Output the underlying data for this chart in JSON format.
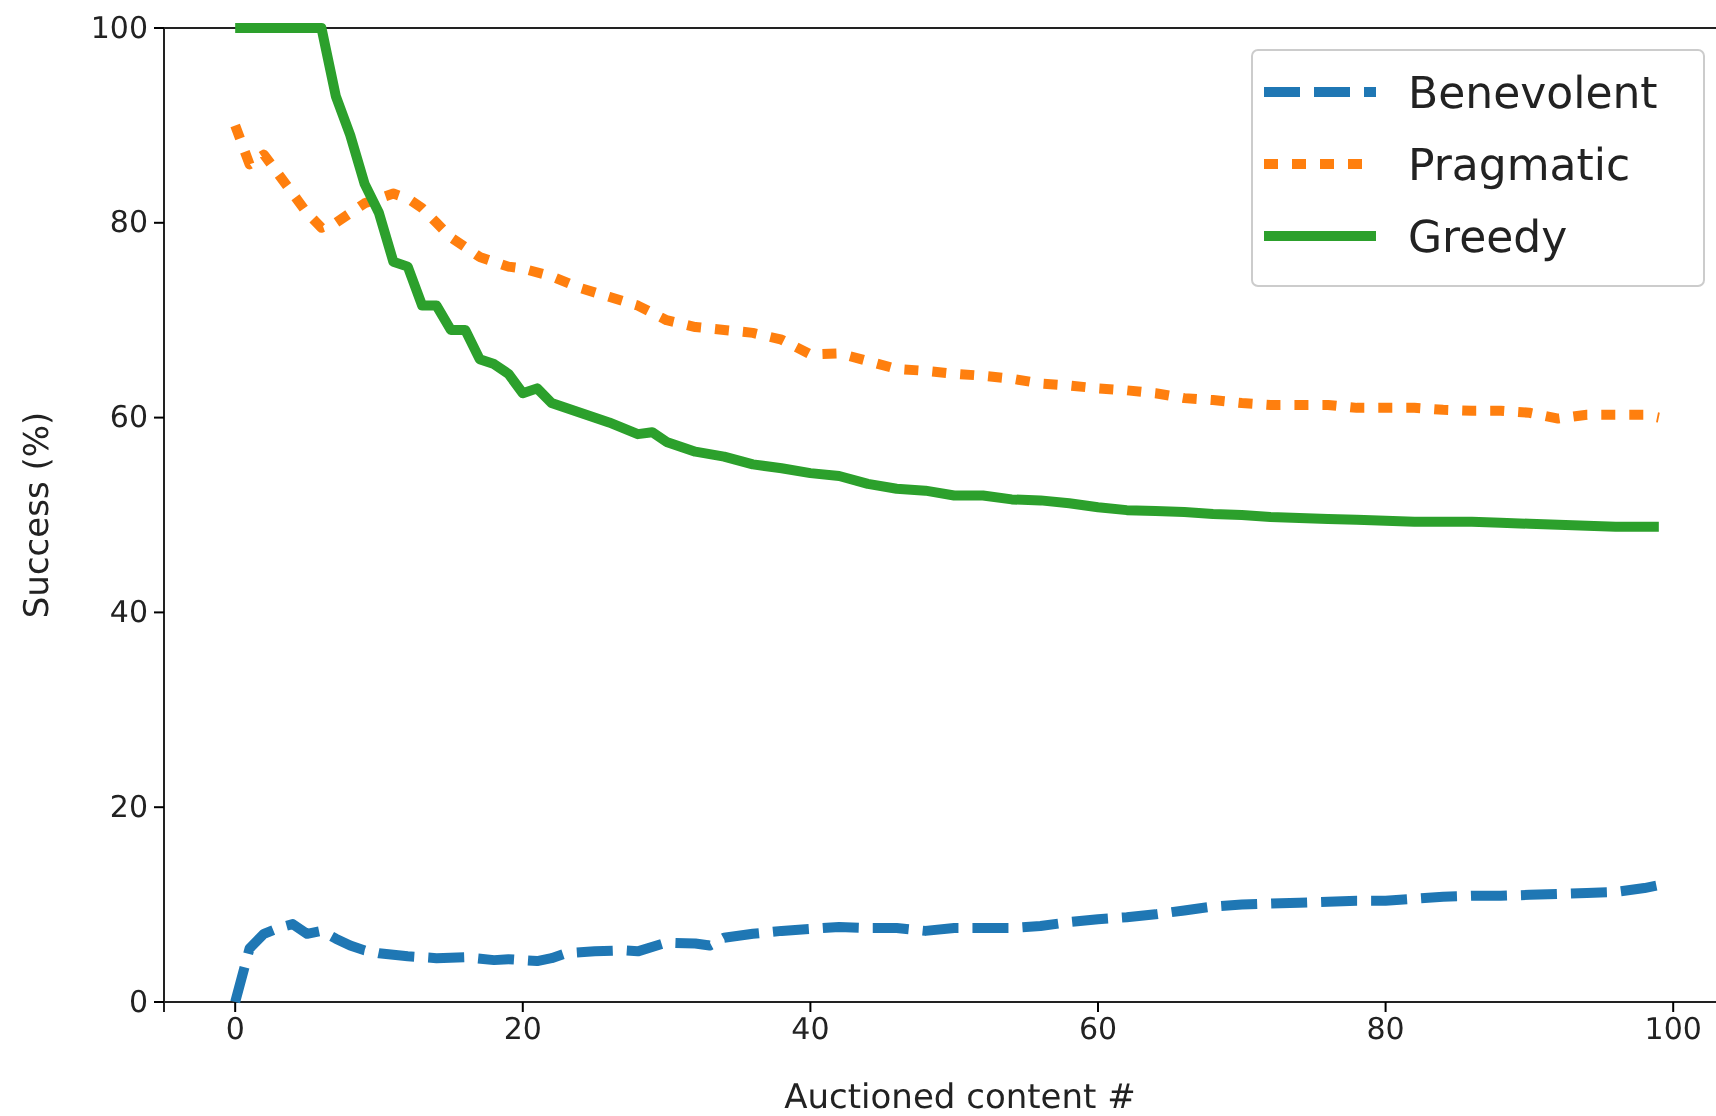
{
  "chart_data": {
    "type": "line",
    "xlabel": "Auctioned content #",
    "ylabel": "Success (%)",
    "xlim": [
      -4.95,
      103.95
    ],
    "ylim": [
      0,
      100
    ],
    "xticks": [
      0,
      20,
      40,
      60,
      80,
      100
    ],
    "yticks": [
      0,
      20,
      40,
      60,
      80,
      100
    ],
    "grid": false,
    "legend": "top right",
    "series": [
      {
        "name": "Benevolent",
        "color": "#1f77b4",
        "line_style": "dashed",
        "x": [
          0,
          1,
          2,
          3,
          4,
          5,
          6,
          7,
          8,
          9,
          10,
          12,
          14,
          16,
          18,
          19,
          21,
          22,
          23,
          25,
          27,
          28,
          30,
          32,
          33,
          34,
          36,
          38,
          40,
          42,
          44,
          46,
          48,
          50,
          52,
          54,
          56,
          58,
          60,
          62,
          64,
          66,
          68,
          70,
          72,
          74,
          76,
          78,
          80,
          82,
          84,
          86,
          88,
          90,
          92,
          94,
          96,
          98,
          99
        ],
        "values": [
          0,
          5.5,
          7,
          7.6,
          8,
          7,
          7.3,
          6.5,
          5.8,
          5.3,
          5,
          4.7,
          4.5,
          4.6,
          4.3,
          4.4,
          4.2,
          4.5,
          5,
          5.2,
          5.3,
          5.2,
          6.1,
          6,
          5.8,
          6.6,
          7,
          7.3,
          7.5,
          7.7,
          7.6,
          7.6,
          7.3,
          7.6,
          7.6,
          7.6,
          7.8,
          8.2,
          8.5,
          8.7,
          9,
          9.4,
          9.8,
          10,
          10.1,
          10.2,
          10.3,
          10.4,
          10.4,
          10.6,
          10.8,
          10.9,
          10.9,
          11,
          11.1,
          11.2,
          11.3,
          11.7,
          12
        ]
      },
      {
        "name": "Pragmatic",
        "color": "#ff7f0e",
        "line_style": "dotted",
        "x": [
          0,
          1,
          2,
          3,
          4,
          5,
          6,
          7,
          8,
          9,
          10,
          11,
          12,
          13,
          14,
          15,
          16,
          17,
          18,
          19,
          20,
          22,
          24,
          26,
          28,
          30,
          32,
          34,
          36,
          38,
          40,
          42,
          44,
          46,
          48,
          50,
          52,
          54,
          56,
          58,
          60,
          62,
          64,
          66,
          68,
          70,
          72,
          74,
          76,
          78,
          80,
          82,
          84,
          86,
          88,
          90,
          92,
          94,
          96,
          98,
          99
        ],
        "values": [
          90,
          86,
          87,
          85,
          83,
          81,
          79.5,
          80,
          81,
          82,
          82.5,
          83,
          82.5,
          81.5,
          80,
          78.5,
          77.5,
          76.5,
          76,
          75.5,
          75.3,
          74.5,
          73.3,
          72.4,
          71.5,
          70,
          69.3,
          69,
          68.7,
          68,
          66.5,
          66.6,
          65.8,
          65,
          64.8,
          64.5,
          64.3,
          64,
          63.5,
          63.3,
          63,
          62.8,
          62.5,
          62,
          61.8,
          61.5,
          61.3,
          61.3,
          61.3,
          61,
          61,
          61,
          60.8,
          60.7,
          60.7,
          60.5,
          59.9,
          60.3,
          60.3,
          60.3,
          60
        ]
      },
      {
        "name": "Greedy",
        "color": "#2ca02c",
        "line_style": "solid",
        "x": [
          0,
          6,
          7,
          8,
          9,
          10,
          11,
          12,
          13,
          14,
          15,
          16,
          17,
          18,
          19,
          20,
          21,
          22,
          24,
          26,
          28,
          29,
          30,
          32,
          34,
          36,
          38,
          40,
          42,
          44,
          46,
          48,
          50,
          52,
          54,
          56,
          58,
          60,
          62,
          64,
          66,
          68,
          70,
          72,
          74,
          76,
          78,
          80,
          82,
          84,
          86,
          88,
          90,
          92,
          94,
          96,
          98,
          99
        ],
        "values": [
          100,
          100,
          93,
          89,
          84,
          81,
          76,
          75.5,
          71.5,
          71.5,
          69,
          69,
          66,
          65.5,
          64.5,
          62.5,
          63,
          61.5,
          60.5,
          59.5,
          58.3,
          58.5,
          57.5,
          56.5,
          56,
          55.2,
          54.8,
          54.3,
          54,
          53.2,
          52.7,
          52.5,
          52,
          52,
          51.6,
          51.5,
          51.2,
          50.8,
          50.5,
          50.4,
          50.3,
          50.1,
          50,
          49.8,
          49.7,
          49.6,
          49.5,
          49.4,
          49.3,
          49.3,
          49.3,
          49.2,
          49.1,
          49,
          48.9,
          48.8,
          48.8,
          48.8
        ]
      }
    ]
  }
}
